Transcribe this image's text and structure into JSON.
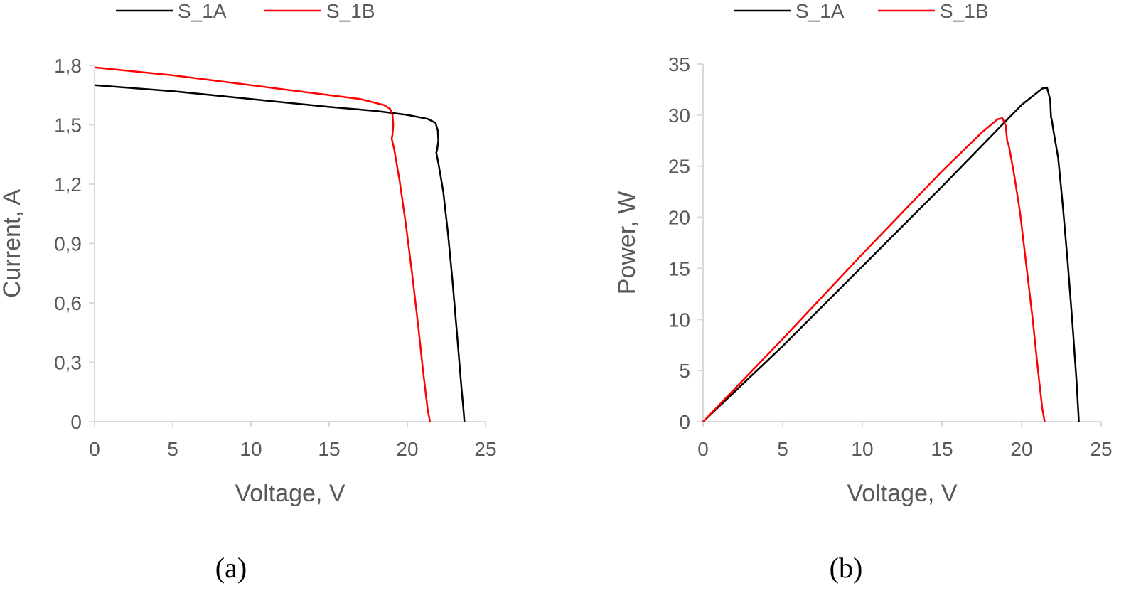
{
  "chart_data": [
    {
      "type": "line",
      "panel_label": "(a)",
      "xlabel": "Voltage, V",
      "ylabel": "Current, A",
      "xlim": [
        0,
        25
      ],
      "ylim": [
        0,
        1.8
      ],
      "x_ticks": [
        "0",
        "5",
        "10",
        "15",
        "20",
        "25"
      ],
      "y_ticks": [
        "0",
        "0,3",
        "0,6",
        "0,9",
        "1,2",
        "1,5",
        "1,8"
      ],
      "grid": false,
      "legend_position": "top",
      "series": [
        {
          "name": "S_1A",
          "color": "#000000",
          "x": [
            0,
            5,
            10,
            15,
            18,
            20,
            21.3,
            21.8,
            21.95,
            21.98,
            21.9,
            21.85,
            22.0,
            22.3,
            22.6,
            22.9,
            23.2,
            23.45,
            23.6,
            23.65
          ],
          "y": [
            1.7,
            1.67,
            1.63,
            1.59,
            1.57,
            1.55,
            1.53,
            1.51,
            1.47,
            1.42,
            1.37,
            1.36,
            1.3,
            1.16,
            0.95,
            0.7,
            0.42,
            0.18,
            0.05,
            0
          ]
        },
        {
          "name": "S_1B",
          "color": "#ff0000",
          "x": [
            0,
            5,
            10,
            15,
            17,
            18.5,
            18.9,
            19.05,
            19.1,
            19.05,
            19.0,
            19.15,
            19.5,
            19.9,
            20.3,
            20.7,
            21.0,
            21.3,
            21.45
          ],
          "y": [
            1.79,
            1.75,
            1.7,
            1.65,
            1.63,
            1.6,
            1.58,
            1.55,
            1.5,
            1.45,
            1.43,
            1.38,
            1.22,
            1.0,
            0.75,
            0.48,
            0.26,
            0.06,
            0
          ]
        }
      ]
    },
    {
      "type": "line",
      "panel_label": "(b)",
      "xlabel": "Voltage, V",
      "ylabel": "Power, W",
      "xlim": [
        0,
        25
      ],
      "ylim": [
        0,
        35
      ],
      "x_ticks": [
        "0",
        "5",
        "10",
        "15",
        "20",
        "25"
      ],
      "y_ticks": [
        "0",
        "5",
        "10",
        "15",
        "20",
        "25",
        "30",
        "35"
      ],
      "grid": false,
      "legend_position": "top",
      "series": [
        {
          "name": "S_1A",
          "color": "#000000",
          "x": [
            0,
            5,
            10,
            15,
            20,
            21.3,
            21.6,
            21.8,
            21.85,
            21.9,
            22.0,
            22.3,
            22.6,
            22.9,
            23.2,
            23.45,
            23.6
          ],
          "y": [
            0,
            7.4,
            15.2,
            23.0,
            31.0,
            32.6,
            32.7,
            31.5,
            29.8,
            29.5,
            28.5,
            25.8,
            21.0,
            15.5,
            9.5,
            4.0,
            0
          ]
        },
        {
          "name": "S_1B",
          "color": "#ff0000",
          "x": [
            0,
            5,
            10,
            15,
            17.5,
            18.5,
            18.8,
            19.0,
            19.1,
            19.2,
            19.5,
            19.9,
            20.3,
            20.7,
            21.0,
            21.3,
            21.45
          ],
          "y": [
            0,
            8.1,
            16.4,
            24.5,
            28.3,
            29.6,
            29.7,
            29.0,
            27.5,
            27.0,
            24.5,
            20.5,
            15.3,
            10.0,
            5.5,
            1.3,
            0
          ]
        }
      ]
    }
  ]
}
